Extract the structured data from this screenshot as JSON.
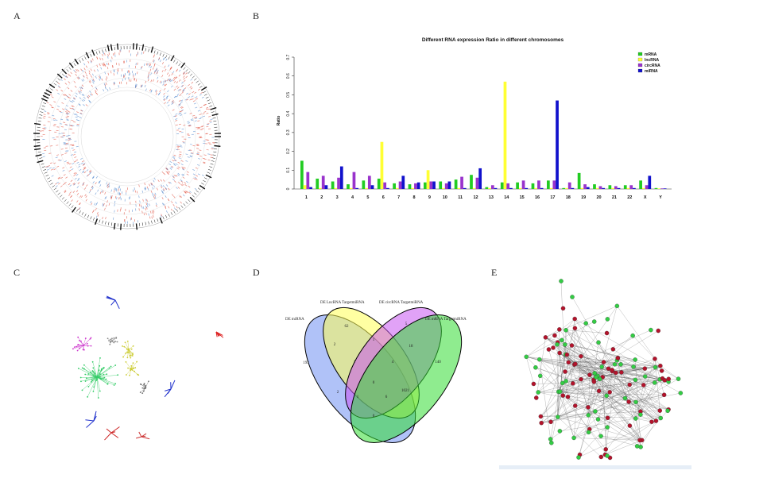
{
  "panels": {
    "a": "A",
    "b": "B",
    "c": "C",
    "d": "D",
    "e": "E"
  },
  "colors": {
    "mrna": "#22cc22",
    "lncrna": "#ffff33",
    "circrna": "#9933cc",
    "mirna": "#1111cc"
  },
  "chart_data": [
    {
      "type": "bar",
      "title": "Different RNA expression Ratio in different chromosomes",
      "xlabel": "",
      "ylabel": "Ratio",
      "ylim": [
        0,
        0.7
      ],
      "yticks": [
        "0",
        "0.1",
        "0.2",
        "0.3",
        "0.4",
        "0.5",
        "0.6",
        "0.7"
      ],
      "legend_position": "top-right",
      "categories": [
        "1",
        "2",
        "3",
        "4",
        "5",
        "6",
        "7",
        "8",
        "9",
        "10",
        "11",
        "12",
        "13",
        "14",
        "15",
        "16",
        "17",
        "18",
        "19",
        "20",
        "21",
        "22",
        "X",
        "Y"
      ],
      "series": [
        {
          "name": "mRNA",
          "color": "#22cc22",
          "values": [
            0.15,
            0.055,
            0.04,
            0.025,
            0.045,
            0.055,
            0.03,
            0.025,
            0.035,
            0.04,
            0.05,
            0.075,
            0.01,
            0.035,
            0.035,
            0.03,
            0.045,
            0.005,
            0.085,
            0.025,
            0.02,
            0.02,
            0.045,
            0.005
          ]
        },
        {
          "name": "lncRNA",
          "color": "#ffff33",
          "values": [
            0.02,
            0.005,
            0.005,
            0.005,
            0.005,
            0.25,
            0.005,
            0.005,
            0.1,
            0.005,
            0.005,
            0.005,
            0.005,
            0.57,
            0.005,
            0.005,
            0.005,
            0.005,
            0.005,
            0.005,
            0.005,
            0.005,
            0.005,
            0.003
          ]
        },
        {
          "name": "circRNA",
          "color": "#9933cc",
          "values": [
            0.09,
            0.07,
            0.06,
            0.09,
            0.07,
            0.035,
            0.04,
            0.03,
            0.04,
            0.03,
            0.065,
            0.06,
            0.02,
            0.03,
            0.045,
            0.045,
            0.045,
            0.035,
            0.025,
            0.015,
            0.015,
            0.02,
            0.02,
            0.003
          ]
        },
        {
          "name": "miRNA",
          "color": "#1111cc",
          "values": [
            0.01,
            0.02,
            0.12,
            0.005,
            0.02,
            0.005,
            0.07,
            0.035,
            0.04,
            0.04,
            0.005,
            0.11,
            0.005,
            0.005,
            0.005,
            0.005,
            0.47,
            0.005,
            0.01,
            0.005,
            0.005,
            0.005,
            0.07,
            0.003
          ]
        }
      ]
    },
    {
      "type": "venn",
      "sets": [
        "DE miRNA",
        "DE LncRNA TargetmiRNA",
        "DE circRNA TargetmiRNA",
        "DE mRNA TargetmiRNA"
      ],
      "regions": [
        {
          "label": "only DE miRNA",
          "value": "193"
        },
        {
          "label": "only DE LncRNA TargetmiRNA",
          "value": "62"
        },
        {
          "label": "only DE circRNA TargetmiRNA",
          "value": "5"
        },
        {
          "label": "only DE mRNA TargetmiRNA",
          "value": "140"
        },
        {
          "label": "miRNA & LncRNA",
          "value": "2"
        },
        {
          "label": "LncRNA & circRNA",
          "value": "1"
        },
        {
          "label": "circRNA & mRNA",
          "value": "18"
        },
        {
          "label": "miRNA & LncRNA & circRNA",
          "value": "1"
        },
        {
          "label": "LncRNA & circRNA & mRNA",
          "value": "4"
        },
        {
          "label": "all four",
          "value": "0"
        },
        {
          "label": "miRNA & circRNA",
          "value": "2"
        },
        {
          "label": "LncRNA & mRNA",
          "value": "1021"
        },
        {
          "label": "miRNA & circRNA & mRNA",
          "value": "1"
        },
        {
          "label": "miRNA & LncRNA & mRNA",
          "value": "6"
        },
        {
          "label": "miRNA & mRNA",
          "value": "0"
        }
      ]
    }
  ]
}
